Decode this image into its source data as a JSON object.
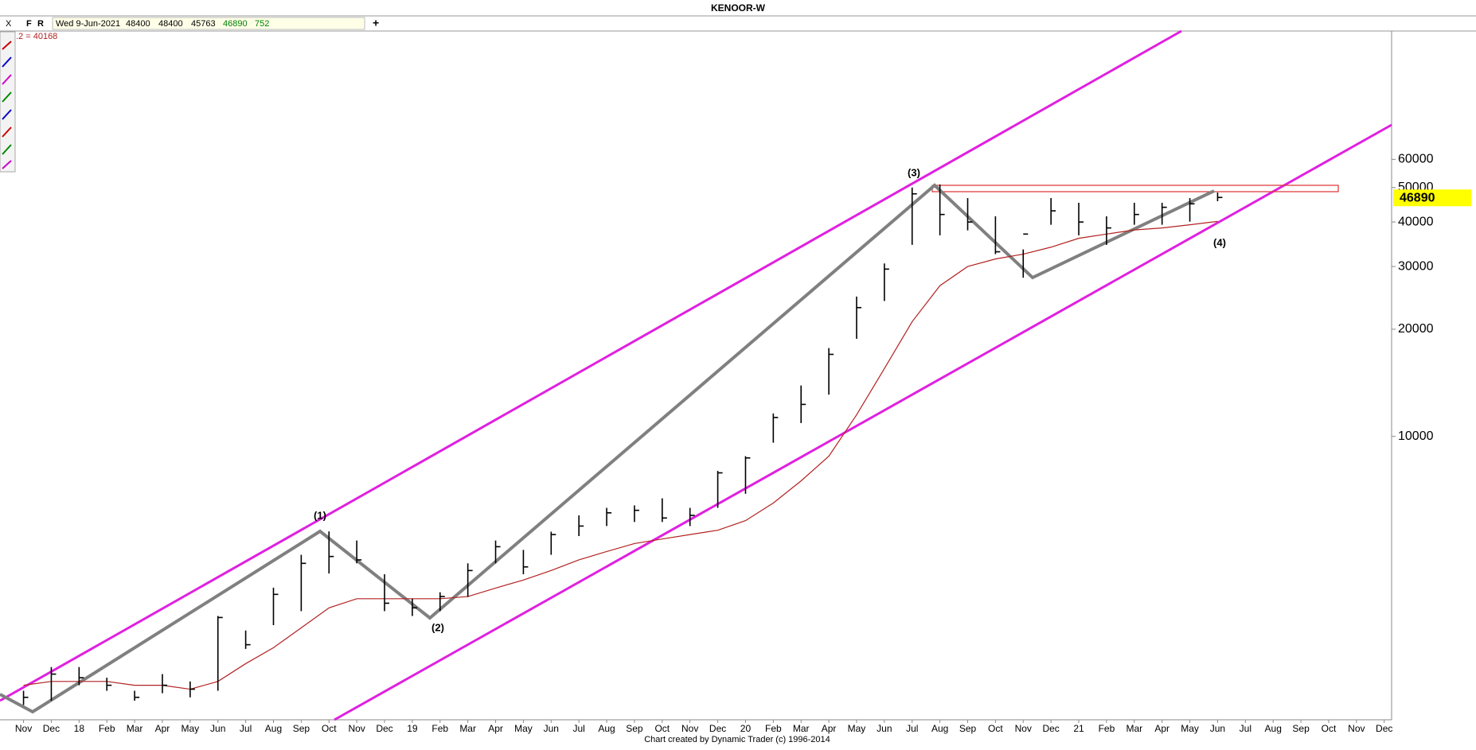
{
  "toolbar": {
    "close_button": "X",
    "f_button": "F",
    "r_button": "R",
    "date": "Wed 9-Jun-2021",
    "open": "48400",
    "high": "48400",
    "low": "45763",
    "close": "46890",
    "volume": "752",
    "add_button": "+",
    "ma_readout": ".2 = 40168"
  },
  "chart_data": {
    "type": "ohlc",
    "title": "KENOOR-W",
    "categories": [
      "Nov",
      "Dec",
      "18",
      "Feb",
      "Mar",
      "Apr",
      "May",
      "Jun",
      "Jul",
      "Aug",
      "Sep",
      "Oct",
      "Nov",
      "Dec",
      "19",
      "Feb",
      "Mar",
      "Apr",
      "May",
      "Jun",
      "Jul",
      "Aug",
      "Sep",
      "Oct",
      "Nov",
      "Dec",
      "20",
      "Feb",
      "Mar",
      "Apr",
      "May",
      "Jun",
      "Jul",
      "Aug",
      "Sep",
      "Oct",
      "Nov",
      "Dec",
      "21",
      "Feb",
      "Mar",
      "Apr",
      "May",
      "Jun",
      "Jul",
      "Aug",
      "Sep",
      "Oct",
      "Nov",
      "Dec"
    ],
    "high": [
      1930,
      2250,
      2250,
      2100,
      1930,
      2150,
      2050,
      3130,
      2850,
      3760,
      4650,
      5410,
      5100,
      4100,
      3500,
      3650,
      4400,
      5100,
      4800,
      5400,
      6000,
      6300,
      6400,
      6700,
      6300,
      8000,
      8800,
      11600,
      13900,
      17700,
      24700,
      30600,
      50000,
      51000,
      46700,
      41500,
      33500,
      46700,
      45300,
      41500,
      45300,
      45300,
      46700,
      48400,
      null,
      null,
      null,
      null,
      null,
      null
    ],
    "low": [
      1760,
      1810,
      2000,
      1930,
      1810,
      1900,
      1850,
      1930,
      2530,
      2950,
      3230,
      4120,
      4400,
      3230,
      3130,
      3230,
      3540,
      4400,
      4100,
      4650,
      5250,
      5600,
      5750,
      5750,
      5600,
      6300,
      6900,
      9600,
      10900,
      13100,
      18800,
      24000,
      34500,
      36700,
      37900,
      32500,
      27900,
      39300,
      36700,
      34500,
      39300,
      39300,
      40100,
      45763,
      null,
      null,
      null,
      null,
      null,
      null
    ],
    "close": [
      1850,
      2150,
      2100,
      2000,
      1850,
      2000,
      1950,
      3100,
      2600,
      3600,
      4400,
      4600,
      4500,
      3400,
      3300,
      3550,
      4200,
      4900,
      4300,
      5300,
      5600,
      6100,
      6200,
      5900,
      6000,
      7900,
      8700,
      11300,
      12300,
      17000,
      23000,
      29500,
      48000,
      42000,
      40000,
      33000,
      37000,
      43000,
      40000,
      38500,
      42000,
      44000,
      45000,
      46890,
      null,
      null,
      null,
      null,
      null,
      null
    ],
    "color": "#000000",
    "ma": {
      "color": "#b22222",
      "values": [
        2000,
        2050,
        2050,
        2050,
        2000,
        2000,
        1950,
        2050,
        2300,
        2550,
        2900,
        3300,
        3500,
        3500,
        3500,
        3500,
        3550,
        3750,
        3950,
        4200,
        4500,
        4750,
        5000,
        5150,
        5300,
        5450,
        5800,
        6500,
        7500,
        8800,
        11500,
        15500,
        21000,
        26500,
        30000,
        31500,
        32500,
        34000,
        36000,
        37000,
        38000,
        38500,
        39300,
        40168,
        null,
        null,
        null,
        null,
        null,
        null
      ]
    },
    "log_scale": true,
    "ylim": [
      1600,
      130000
    ],
    "yticks": [
      10000,
      20000,
      30000,
      40000,
      50000,
      60000
    ],
    "annotations": [
      "(1)",
      "(2)",
      "(3)",
      "(4)"
    ],
    "last_price_color": "#ffff00",
    "footer": "Chart created by Dynamic Trader  (c) 1996-2014"
  }
}
